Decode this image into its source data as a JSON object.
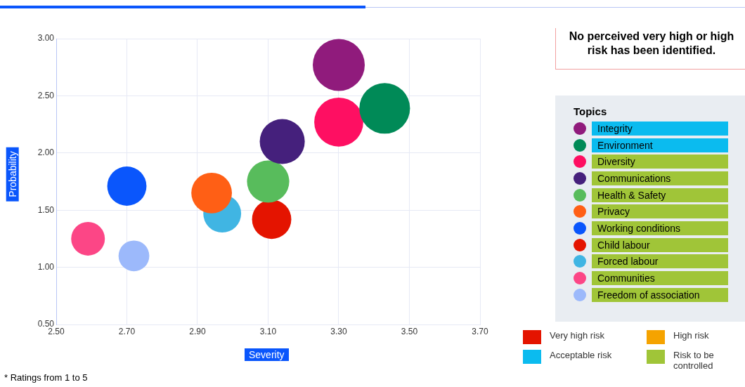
{
  "chart_data": {
    "type": "bubble",
    "xlabel": "Severity",
    "ylabel": "Probability",
    "legend_title": "Topics",
    "xlim": [
      2.5,
      3.7
    ],
    "ylim": [
      0.5,
      3.0
    ],
    "xticks": [
      {
        "value": 2.5,
        "label": "2.50"
      },
      {
        "value": 2.7,
        "label": "2.70"
      },
      {
        "value": 2.9,
        "label": "2.90"
      },
      {
        "value": 3.1,
        "label": "3.10"
      },
      {
        "value": 3.3,
        "label": "3.30"
      },
      {
        "value": 3.5,
        "label": "3.50"
      },
      {
        "value": 3.7,
        "label": "3.70"
      }
    ],
    "yticks": [
      {
        "value": 0.5,
        "label": "0.50"
      },
      {
        "value": 1.0,
        "label": "1.00"
      },
      {
        "value": 1.5,
        "label": "1.50"
      },
      {
        "value": 2.0,
        "label": "2.00"
      },
      {
        "value": 2.5,
        "label": "2.50"
      },
      {
        "value": 3.0,
        "label": "3.00"
      }
    ],
    "grid": true,
    "legend": "right",
    "series": [
      {
        "name": "Integrity",
        "color": "#901b7c",
        "x": [
          3.3
        ],
        "values": [
          2.77
        ],
        "sizes": [
          1
        ]
      },
      {
        "name": "Environment",
        "color": "#008a57",
        "x": [
          3.43
        ],
        "values": [
          2.39
        ],
        "sizes": [
          0.95
        ]
      },
      {
        "name": "Diversity",
        "color": "#fe0f62",
        "x": [
          3.3
        ],
        "values": [
          2.27
        ],
        "sizes": [
          0.89
        ]
      },
      {
        "name": "Communications",
        "color": "#45207c",
        "x": [
          3.14
        ],
        "values": [
          2.1
        ],
        "sizes": [
          0.75
        ]
      },
      {
        "name": "Health & Safety",
        "color": "#58bc5c",
        "x": [
          3.1
        ],
        "values": [
          1.75
        ],
        "sizes": [
          0.66
        ]
      },
      {
        "name": "Privacy",
        "color": "#ff5f15",
        "x": [
          2.94
        ],
        "values": [
          1.65
        ],
        "sizes": [
          0.61
        ]
      },
      {
        "name": "Working conditions",
        "color": "#0a56fc",
        "x": [
          2.7
        ],
        "values": [
          1.71
        ],
        "sizes": [
          0.57
        ]
      },
      {
        "name": "Child labour",
        "color": "#e41400",
        "x": [
          3.11
        ],
        "values": [
          1.42
        ],
        "sizes": [
          0.57
        ]
      },
      {
        "name": "Forced labour",
        "color": "#40b5e3",
        "x": [
          2.97
        ],
        "values": [
          1.47
        ],
        "sizes": [
          0.53
        ]
      },
      {
        "name": "Communities",
        "color": "#fc4686",
        "x": [
          2.59
        ],
        "values": [
          1.25
        ],
        "sizes": [
          0.42
        ]
      },
      {
        "name": "Freedom of association",
        "color": "#9cb9fb",
        "x": [
          2.72
        ],
        "values": [
          1.1
        ],
        "sizes": [
          0.35
        ]
      }
    ],
    "annotations": [
      "No perceived very high or high risk has been identified.",
      "Very high risk",
      "High risk",
      "Acceptable risk",
      "Risk to be controlled",
      "* Ratings from 1 to 5"
    ]
  }
}
